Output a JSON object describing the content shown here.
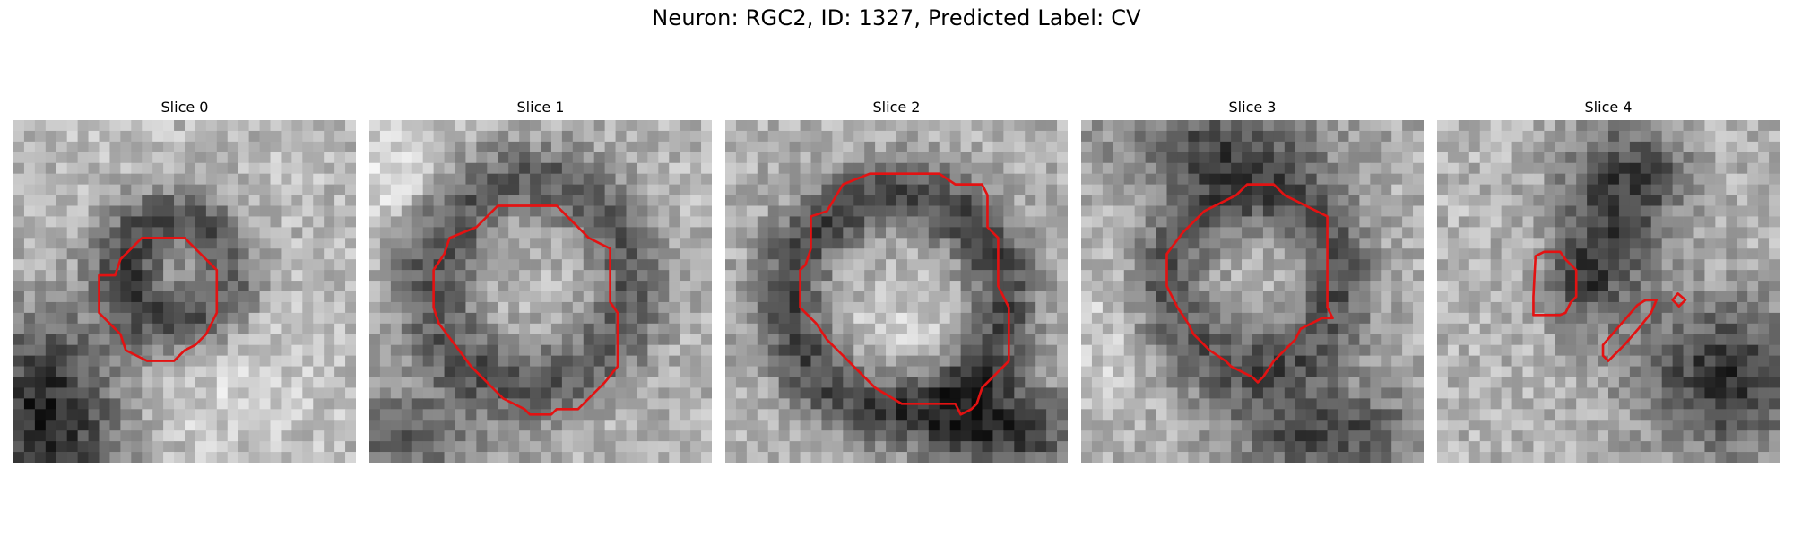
{
  "figure": {
    "title": "Neuron: RGC2, ID: 1327, Predicted Label: CV",
    "contour_color": "#e31212"
  },
  "panels": [
    {
      "title": "Slice 0"
    },
    {
      "title": "Slice 1"
    },
    {
      "title": "Slice 2"
    },
    {
      "title": "Slice 3"
    },
    {
      "title": "Slice 4"
    }
  ]
}
